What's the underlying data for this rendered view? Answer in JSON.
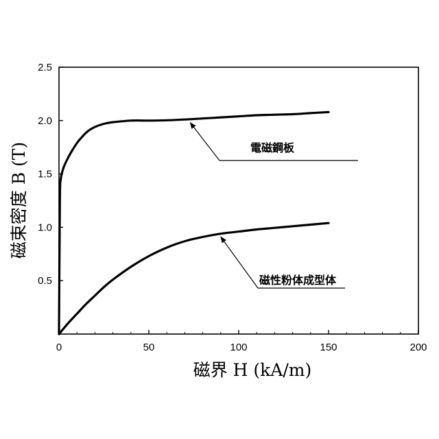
{
  "chart_data": {
    "type": "line",
    "xlabel": "磁界 H (kA/m)",
    "ylabel": "磁束密度 B (T)",
    "xlim": [
      0,
      200
    ],
    "ylim": [
      0,
      2.5
    ],
    "xticks": [
      "0",
      "50",
      "100",
      "150",
      "200"
    ],
    "yticks": [
      "0.5",
      "1.0",
      "1.5",
      "2.0",
      "2.5"
    ],
    "grid": false,
    "series": [
      {
        "name": "電磁鋼板",
        "x": [
          0,
          0.5,
          1,
          2,
          3,
          5,
          7,
          10,
          13,
          16,
          20,
          25,
          30,
          40,
          50,
          60,
          70,
          80,
          90,
          100,
          110,
          120,
          130,
          140,
          150
        ],
        "y": [
          0,
          1.25,
          1.45,
          1.53,
          1.58,
          1.65,
          1.71,
          1.79,
          1.85,
          1.9,
          1.94,
          1.97,
          1.985,
          2.0,
          2.0,
          2.003,
          2.01,
          2.02,
          2.03,
          2.04,
          2.05,
          2.055,
          2.06,
          2.07,
          2.08
        ]
      },
      {
        "name": "磁性粉体成型体",
        "x": [
          0,
          5,
          10,
          15,
          20,
          25,
          30,
          40,
          50,
          60,
          70,
          80,
          90,
          100,
          110,
          120,
          130,
          140,
          150
        ],
        "y": [
          0,
          0.1,
          0.19,
          0.28,
          0.36,
          0.44,
          0.51,
          0.63,
          0.73,
          0.81,
          0.87,
          0.91,
          0.94,
          0.96,
          0.98,
          0.995,
          1.01,
          1.025,
          1.04
        ]
      }
    ],
    "annotations": [
      {
        "text": "電磁鋼板",
        "target": [
          73,
          2.0
        ]
      },
      {
        "text": "磁性粉体成型体",
        "target": [
          90,
          0.93
        ]
      }
    ]
  }
}
